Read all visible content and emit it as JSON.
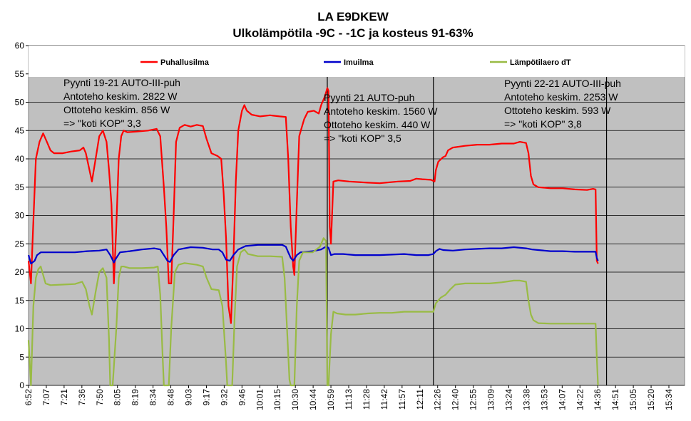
{
  "chart_data": {
    "type": "line",
    "title": "LA E9DKEW",
    "subtitle": "Ulkolämpötila -9C - -1C ja kosteus 91-63%",
    "ylim": [
      0,
      60
    ],
    "y_ticks": [
      0,
      5,
      10,
      15,
      20,
      25,
      30,
      35,
      40,
      45,
      50,
      55,
      60
    ],
    "x_tick_labels": [
      "6:52",
      "7:07",
      "7:21",
      "7:36",
      "7:50",
      "8:05",
      "8:19",
      "8:34",
      "8:48",
      "9:03",
      "9:17",
      "9:32",
      "9:46",
      "10:01",
      "10:15",
      "10:30",
      "10:44",
      "10:59",
      "11:13",
      "11:28",
      "11:42",
      "11:57",
      "12:11",
      "12:26",
      "12:40",
      "12:55",
      "13:09",
      "13:24",
      "13:38",
      "13:53",
      "14:07",
      "14:22",
      "14:36",
      "14:51",
      "15:05",
      "15:20",
      "15:34"
    ],
    "x_range_minutes": [
      412,
      950
    ],
    "grid": true,
    "legend_position": "top",
    "plot_background": "#c0c0c0",
    "series": [
      {
        "name": "Puhallusilma",
        "color": "#ff0000",
        "points": [
          [
            412,
            22
          ],
          [
            414,
            18
          ],
          [
            416,
            29
          ],
          [
            418,
            40
          ],
          [
            421,
            43
          ],
          [
            424,
            44.5
          ],
          [
            427,
            43
          ],
          [
            430,
            41.5
          ],
          [
            433,
            41
          ],
          [
            440,
            41
          ],
          [
            447,
            41.3
          ],
          [
            454,
            41.5
          ],
          [
            457,
            42
          ],
          [
            459,
            41
          ],
          [
            462,
            38
          ],
          [
            464,
            36
          ],
          [
            467,
            40
          ],
          [
            470,
            44
          ],
          [
            473,
            45
          ],
          [
            476,
            43
          ],
          [
            478,
            38
          ],
          [
            480,
            32
          ],
          [
            482,
            18
          ],
          [
            484,
            28
          ],
          [
            486,
            40
          ],
          [
            488,
            44
          ],
          [
            490,
            45
          ],
          [
            493,
            44.7
          ],
          [
            500,
            44.8
          ],
          [
            510,
            45
          ],
          [
            517,
            45.3
          ],
          [
            520,
            44
          ],
          [
            523,
            35
          ],
          [
            525,
            28
          ],
          [
            527,
            18
          ],
          [
            529,
            18
          ],
          [
            531,
            30
          ],
          [
            533,
            43
          ],
          [
            536,
            45.5
          ],
          [
            540,
            46
          ],
          [
            545,
            45.7
          ],
          [
            550,
            46
          ],
          [
            555,
            45.8
          ],
          [
            558,
            43.5
          ],
          [
            562,
            41
          ],
          [
            567,
            40.5
          ],
          [
            570,
            40
          ],
          [
            572,
            34
          ],
          [
            574,
            26
          ],
          [
            576,
            14
          ],
          [
            578,
            11
          ],
          [
            580,
            22
          ],
          [
            582,
            36
          ],
          [
            584,
            45
          ],
          [
            587,
            48.5
          ],
          [
            589,
            49.5
          ],
          [
            591,
            48.5
          ],
          [
            595,
            47.8
          ],
          [
            602,
            47.5
          ],
          [
            610,
            47.7
          ],
          [
            618,
            47.5
          ],
          [
            623,
            47.4
          ],
          [
            625,
            40
          ],
          [
            627,
            28
          ],
          [
            629,
            21
          ],
          [
            630,
            19.5
          ],
          [
            632,
            32
          ],
          [
            634,
            44
          ],
          [
            636,
            45.5
          ],
          [
            638,
            47
          ],
          [
            641,
            48.3
          ],
          [
            646,
            48.5
          ],
          [
            650,
            48
          ],
          [
            652,
            49.5
          ],
          [
            655,
            51
          ],
          [
            657,
            52.5
          ],
          [
            658,
            52
          ],
          [
            659,
            28
          ],
          [
            660,
            25
          ],
          [
            662,
            36
          ],
          [
            666,
            36.2
          ],
          [
            675,
            36
          ],
          [
            690,
            35.8
          ],
          [
            700,
            35.7
          ],
          [
            715,
            36
          ],
          [
            725,
            36.1
          ],
          [
            730,
            36.5
          ],
          [
            735,
            36.4
          ],
          [
            742,
            36.3
          ],
          [
            745,
            36
          ],
          [
            746,
            38
          ],
          [
            748,
            39.5
          ],
          [
            752,
            40.3
          ],
          [
            754,
            40.5
          ],
          [
            756,
            41.5
          ],
          [
            760,
            42
          ],
          [
            770,
            42.3
          ],
          [
            780,
            42.5
          ],
          [
            790,
            42.5
          ],
          [
            800,
            42.7
          ],
          [
            810,
            42.7
          ],
          [
            815,
            43
          ],
          [
            820,
            42.8
          ],
          [
            822,
            41
          ],
          [
            824,
            37
          ],
          [
            826,
            35.5
          ],
          [
            830,
            35
          ],
          [
            840,
            34.8
          ],
          [
            850,
            34.8
          ],
          [
            860,
            34.6
          ],
          [
            870,
            34.5
          ],
          [
            875,
            34.7
          ],
          [
            877,
            34.6
          ],
          [
            878,
            22
          ],
          [
            879,
            21.5
          ]
        ]
      },
      {
        "name": "Imuilma",
        "color": "#0000cc",
        "points": [
          [
            412,
            23
          ],
          [
            414,
            21.5
          ],
          [
            417,
            22
          ],
          [
            419,
            23
          ],
          [
            422,
            23.5
          ],
          [
            430,
            23.5
          ],
          [
            440,
            23.5
          ],
          [
            450,
            23.5
          ],
          [
            460,
            23.7
          ],
          [
            470,
            23.8
          ],
          [
            476,
            24
          ],
          [
            479,
            23
          ],
          [
            482,
            21.7
          ],
          [
            484,
            22.5
          ],
          [
            487,
            23.5
          ],
          [
            495,
            23.7
          ],
          [
            505,
            24
          ],
          [
            515,
            24.2
          ],
          [
            520,
            24
          ],
          [
            523,
            23
          ],
          [
            526,
            22
          ],
          [
            528,
            21.8
          ],
          [
            531,
            23
          ],
          [
            535,
            24
          ],
          [
            545,
            24.4
          ],
          [
            555,
            24.3
          ],
          [
            563,
            24
          ],
          [
            568,
            24
          ],
          [
            571,
            23.5
          ],
          [
            574,
            22.2
          ],
          [
            577,
            22
          ],
          [
            580,
            23
          ],
          [
            584,
            24
          ],
          [
            590,
            24.6
          ],
          [
            600,
            24.8
          ],
          [
            610,
            24.8
          ],
          [
            620,
            24.8
          ],
          [
            623,
            24.5
          ],
          [
            625,
            23.5
          ],
          [
            627,
            22.5
          ],
          [
            629,
            22
          ],
          [
            632,
            23
          ],
          [
            635,
            23.5
          ],
          [
            645,
            23.7
          ],
          [
            652,
            24
          ],
          [
            656,
            24.5
          ],
          [
            658,
            24.3
          ],
          [
            660,
            23
          ],
          [
            663,
            23.2
          ],
          [
            670,
            23.2
          ],
          [
            680,
            23
          ],
          [
            690,
            23
          ],
          [
            700,
            23
          ],
          [
            710,
            23.1
          ],
          [
            720,
            23.2
          ],
          [
            730,
            23
          ],
          [
            740,
            23
          ],
          [
            744,
            23.2
          ],
          [
            746,
            23.7
          ],
          [
            749,
            24.1
          ],
          [
            752,
            23.9
          ],
          [
            760,
            23.8
          ],
          [
            770,
            24
          ],
          [
            780,
            24.1
          ],
          [
            790,
            24.2
          ],
          [
            800,
            24.2
          ],
          [
            810,
            24.4
          ],
          [
            820,
            24.2
          ],
          [
            825,
            24
          ],
          [
            830,
            23.9
          ],
          [
            840,
            23.7
          ],
          [
            850,
            23.7
          ],
          [
            860,
            23.6
          ],
          [
            870,
            23.6
          ],
          [
            877,
            23.6
          ],
          [
            878,
            22.5
          ],
          [
            879,
            22
          ]
        ]
      },
      {
        "name": "Lämpötilaero dT",
        "color": "#99bb44",
        "points": [
          [
            412,
            8
          ],
          [
            414,
            0
          ],
          [
            416,
            14
          ],
          [
            418,
            19
          ],
          [
            420,
            20.5
          ],
          [
            422,
            21
          ],
          [
            424,
            19.5
          ],
          [
            426,
            18
          ],
          [
            430,
            17.7
          ],
          [
            440,
            17.8
          ],
          [
            450,
            17.9
          ],
          [
            456,
            18.3
          ],
          [
            459,
            17
          ],
          [
            462,
            14
          ],
          [
            464,
            12.5
          ],
          [
            467,
            16.5
          ],
          [
            470,
            20
          ],
          [
            473,
            20.7
          ],
          [
            476,
            19
          ],
          [
            478,
            8
          ],
          [
            479,
            0
          ],
          [
            481,
            0
          ],
          [
            484,
            10
          ],
          [
            486,
            19
          ],
          [
            488,
            21
          ],
          [
            490,
            21
          ],
          [
            495,
            20.7
          ],
          [
            505,
            20.7
          ],
          [
            515,
            20.8
          ],
          [
            518,
            21
          ],
          [
            520,
            16
          ],
          [
            522,
            5
          ],
          [
            523,
            0
          ],
          [
            527,
            0
          ],
          [
            529,
            10
          ],
          [
            532,
            20
          ],
          [
            535,
            21.3
          ],
          [
            540,
            21.6
          ],
          [
            550,
            21.3
          ],
          [
            555,
            21
          ],
          [
            558,
            19
          ],
          [
            562,
            17
          ],
          [
            568,
            16.8
          ],
          [
            571,
            14
          ],
          [
            574,
            4
          ],
          [
            575,
            0
          ],
          [
            579,
            0
          ],
          [
            581,
            12
          ],
          [
            583,
            21
          ],
          [
            586,
            23.5
          ],
          [
            589,
            24
          ],
          [
            592,
            23.2
          ],
          [
            600,
            22.8
          ],
          [
            610,
            22.8
          ],
          [
            620,
            22.7
          ],
          [
            622,
            19
          ],
          [
            624,
            10
          ],
          [
            626,
            1
          ],
          [
            627,
            0
          ],
          [
            630,
            0
          ],
          [
            632,
            14
          ],
          [
            634,
            22
          ],
          [
            637,
            23.5
          ],
          [
            645,
            23.5
          ],
          [
            651,
            24.5
          ],
          [
            654,
            26
          ],
          [
            656,
            25.5
          ],
          [
            657,
            0
          ],
          [
            658,
            0
          ],
          [
            660,
            9
          ],
          [
            662,
            13
          ],
          [
            665,
            12.7
          ],
          [
            672,
            12.5
          ],
          [
            680,
            12.5
          ],
          [
            690,
            12.7
          ],
          [
            700,
            12.8
          ],
          [
            710,
            12.8
          ],
          [
            720,
            13
          ],
          [
            730,
            13
          ],
          [
            740,
            13
          ],
          [
            744,
            13
          ],
          [
            746,
            14.5
          ],
          [
            750,
            15.5
          ],
          [
            754,
            16
          ],
          [
            758,
            17
          ],
          [
            762,
            17.8
          ],
          [
            770,
            18
          ],
          [
            780,
            18
          ],
          [
            790,
            18
          ],
          [
            800,
            18.2
          ],
          [
            810,
            18.5
          ],
          [
            815,
            18.5
          ],
          [
            820,
            18.3
          ],
          [
            822,
            15
          ],
          [
            824,
            12.5
          ],
          [
            826,
            11.5
          ],
          [
            830,
            11
          ],
          [
            840,
            10.9
          ],
          [
            850,
            10.9
          ],
          [
            860,
            10.9
          ],
          [
            870,
            10.9
          ],
          [
            877,
            10.9
          ],
          [
            878,
            5
          ],
          [
            879,
            0
          ]
        ]
      }
    ],
    "annotations": [
      {
        "lines": [
          "Pyynti  19-21 AUTO-III-puh",
          "Antoteho  keskim. 2822 W",
          "Ottoteho keskim. 856 W",
          "=> \"koti KOP\" 3,3"
        ]
      },
      {
        "lines": [
          "Pyynti  21 AUTO-puh",
          "Antoteho keskim. 1560 W",
          "Ottoteho keskim. 440 W",
          "=> \"koti KOP\" 3,5"
        ]
      },
      {
        "lines": [
          "Pyynti  22-21 AUTO-III-puh",
          "Antoteho  keskim. 2253 W",
          "Ottoteho  keskim. 593 W",
          "=> \"koti KOP\" 3,8"
        ]
      }
    ],
    "vertical_markers_minutes": [
      657,
      744,
      886
    ]
  }
}
